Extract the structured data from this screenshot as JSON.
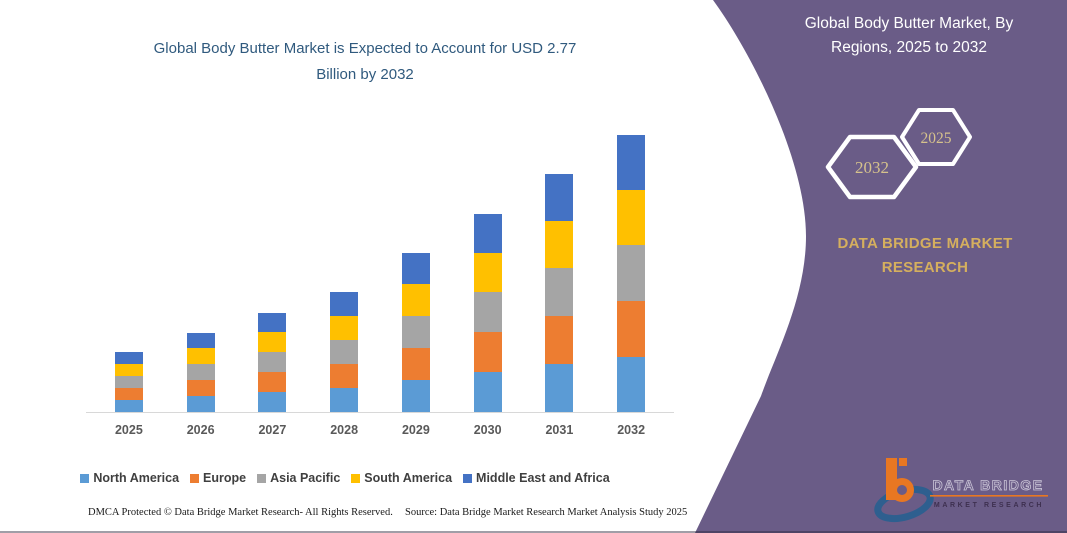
{
  "chart": {
    "title_line1": "Global Body Butter Market is Expected to Account for USD 2.77",
    "title_line2": "Billion by 2032",
    "title_color": "#305A7E"
  },
  "chart_data": {
    "type": "bar",
    "stacked": true,
    "title": "Global Body Butter Market is Expected to Account for USD 2.77 Billion by 2032",
    "unit": "USD Billion",
    "xlabel": "",
    "ylabel": "",
    "ylim": [
      0,
      3
    ],
    "grid": false,
    "legend_position": "bottom",
    "categories": [
      "2025",
      "2026",
      "2027",
      "2028",
      "2029",
      "2030",
      "2031",
      "2032"
    ],
    "totals": [
      0.6,
      0.79,
      0.99,
      1.2,
      1.59,
      1.98,
      2.38,
      2.77
    ],
    "series": [
      {
        "name": "North America",
        "color": "#5B9BD5",
        "values": [
          0.12,
          0.16,
          0.2,
          0.24,
          0.32,
          0.4,
          0.48,
          0.55
        ]
      },
      {
        "name": "Europe",
        "color": "#ED7D31",
        "values": [
          0.12,
          0.16,
          0.2,
          0.24,
          0.32,
          0.4,
          0.48,
          0.56
        ]
      },
      {
        "name": "Asia Pacific",
        "color": "#A5A5A5",
        "values": [
          0.12,
          0.16,
          0.2,
          0.24,
          0.32,
          0.4,
          0.48,
          0.56
        ]
      },
      {
        "name": "South America",
        "color": "#FFC000",
        "values": [
          0.12,
          0.16,
          0.2,
          0.24,
          0.32,
          0.39,
          0.47,
          0.55
        ]
      },
      {
        "name": "Middle East and Africa",
        "color": "#4472C4",
        "values": [
          0.12,
          0.15,
          0.19,
          0.24,
          0.31,
          0.39,
          0.47,
          0.55
        ]
      }
    ]
  },
  "footer": {
    "left": "DMCA Protected © Data Bridge Market Research-  All Rights Reserved.",
    "right": "Source: Data Bridge Market Research  Market Analysis Study 2025"
  },
  "right_panel": {
    "bg_color": "#6A5C87",
    "title_line1": "Global Body Butter Market, By",
    "title_line2": "Regions, 2025 to 2032",
    "hexagon_left": "2032",
    "hexagon_right": "2025",
    "hexagon_text_color": "#D6C28C",
    "brand_line1": "DATA BRIDGE MARKET",
    "brand_line2": "RESEARCH",
    "brand_color": "#D5AF5E",
    "logo_text1": "DATA BRIDGE",
    "logo_text2": "MARKET RESEARCH"
  }
}
